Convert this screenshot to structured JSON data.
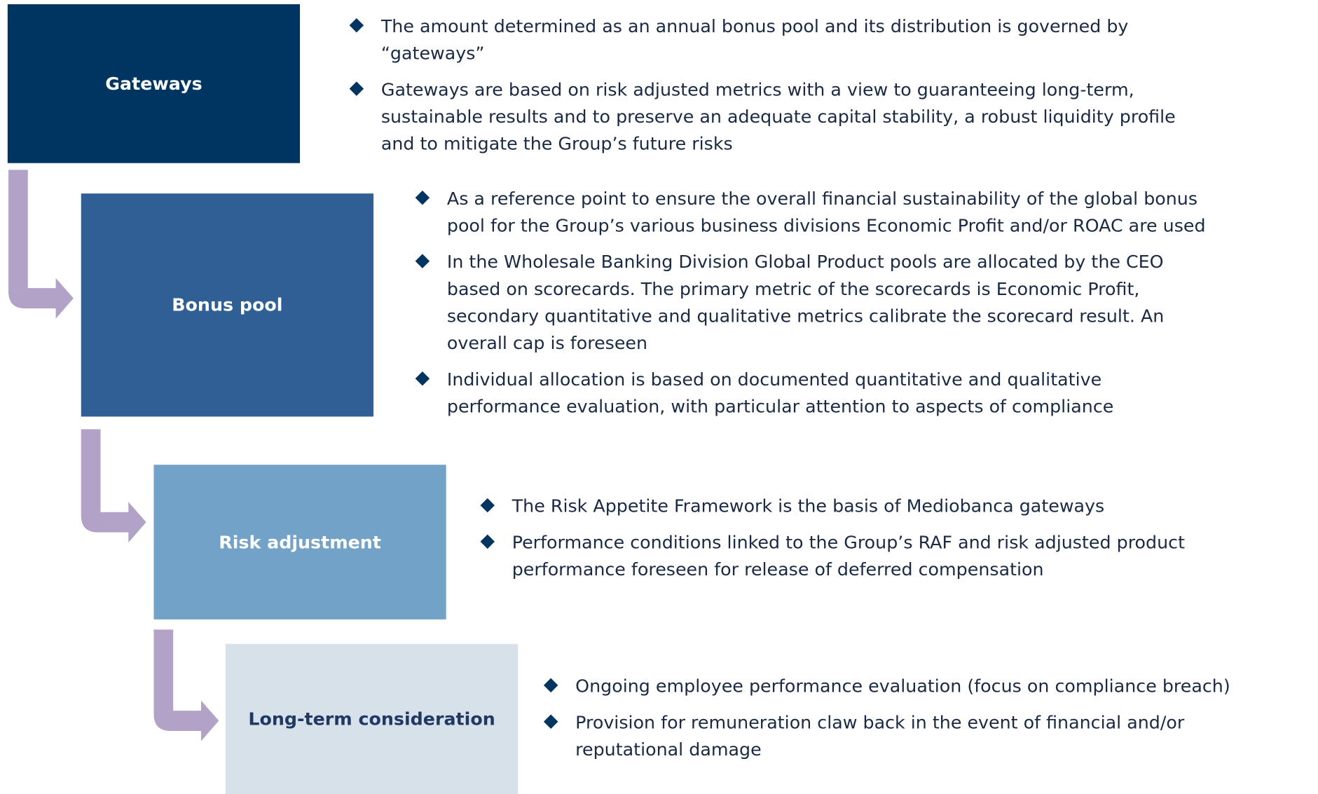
{
  "sections": [
    {
      "label": "Gateways",
      "bullets": [
        [
          "The amount determined as an annual bonus pool and its distribution is governed by",
          "“gateways”"
        ],
        [
          "Gateways are based on risk adjusted metrics with a view to guaranteeing long-term,",
          "sustainable results and to preserve an adequate capital stability, a robust liquidity profile",
          "and to mitigate the Group’s future risks"
        ]
      ]
    },
    {
      "label": "Bonus pool",
      "bullets": [
        [
          "As a reference point to ensure the overall financial sustainability of the global bonus",
          "pool for the Group’s various business divisions Economic Profit and/or ROAC are used"
        ],
        [
          "In the Wholesale Banking Division Global Product pools are allocated by the CEO",
          "based on scorecards. The primary metric of the scorecards is Economic Profit,",
          "secondary quantitative and qualitative metrics calibrate the scorecard result. An",
          "overall cap is foreseen"
        ],
        [
          "Individual allocation is based on documented quantitative and qualitative",
          "performance evaluation, with particular attention to aspects of compliance"
        ]
      ]
    },
    {
      "label": "Risk adjustment",
      "bullets": [
        [
          "The Risk Appetite Framework is the basis of Mediobanca gateways"
        ],
        [
          "Performance conditions linked to the Group’s RAF and risk adjusted product",
          "performance foreseen for release of deferred compensation"
        ]
      ]
    },
    {
      "label": "Long-term consideration",
      "bullets": [
        [
          "Ongoing employee performance evaluation (focus on compliance breach)"
        ],
        [
          "Provision for remuneration claw back in the event of financial and/or",
          "reputational damage"
        ]
      ]
    }
  ]
}
